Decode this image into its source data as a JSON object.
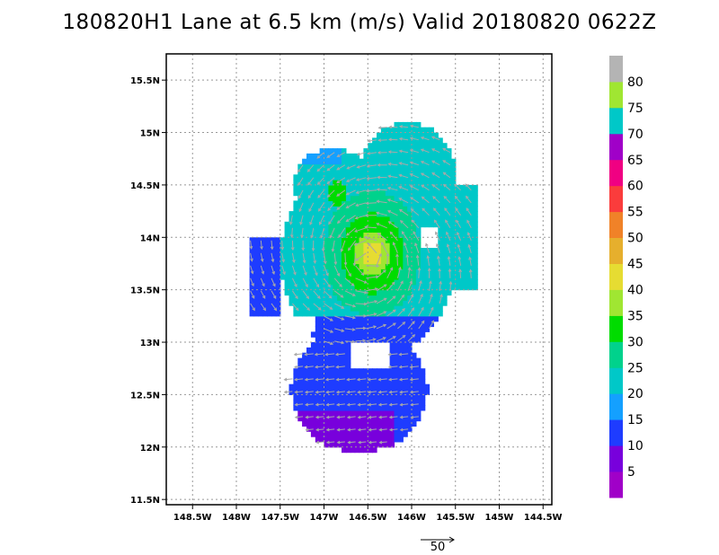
{
  "title": "180820H1 Lane at 6.5 km (m/s) Valid 20180820 0622Z",
  "chart_data": {
    "type": "heatmap",
    "title": "180820H1 Lane at 6.5 km (m/s) Valid 20180820 0622Z",
    "xlabel": "",
    "ylabel": "",
    "xlim": [
      -148.8,
      -144.4
    ],
    "ylim": [
      11.45,
      15.75
    ],
    "x_ticks": [
      {
        "value": -148.5,
        "label": "148.5W"
      },
      {
        "value": -148,
        "label": "148W"
      },
      {
        "value": -147.5,
        "label": "147.5W"
      },
      {
        "value": -147,
        "label": "147W"
      },
      {
        "value": -146.5,
        "label": "146.5W"
      },
      {
        "value": -146,
        "label": "146W"
      },
      {
        "value": -145.5,
        "label": "145.5W"
      },
      {
        "value": -145,
        "label": "145W"
      },
      {
        "value": -144.5,
        "label": "144.5W"
      }
    ],
    "y_ticks": [
      {
        "value": 11.5,
        "label": "11.5N"
      },
      {
        "value": 12,
        "label": "12N"
      },
      {
        "value": 12.5,
        "label": "12.5N"
      },
      {
        "value": 13,
        "label": "13N"
      },
      {
        "value": 13.5,
        "label": "13.5N"
      },
      {
        "value": 14,
        "label": "14N"
      },
      {
        "value": 14.5,
        "label": "14.5N"
      },
      {
        "value": 15,
        "label": "15N"
      },
      {
        "value": 15.5,
        "label": "15.5N"
      }
    ],
    "grid": true,
    "colorbar": {
      "placement": "right",
      "labels": [
        "5",
        "10",
        "15",
        "20",
        "25",
        "30",
        "35",
        "40",
        "45",
        "50",
        "55",
        "60",
        "65",
        "70",
        "75",
        "80"
      ],
      "colors": [
        "#a000c8",
        "#7800dc",
        "#1e3cff",
        "#14a0ff",
        "#00c8c8",
        "#00d28c",
        "#00dc00",
        "#a0e632",
        "#e6dc32",
        "#e6af2d",
        "#f08228",
        "#fa3c3c",
        "#f00082",
        "#a000c8",
        "#00c8c8",
        "#a0e632",
        "#b4b4b4"
      ]
    },
    "vortex_center": {
      "lon": -146.5,
      "lat": 13.8
    },
    "max_wind_region": {
      "lon": -146.45,
      "lat": 13.85,
      "value": 40
    },
    "reference_vector": {
      "label": "50",
      "value": 50
    }
  }
}
